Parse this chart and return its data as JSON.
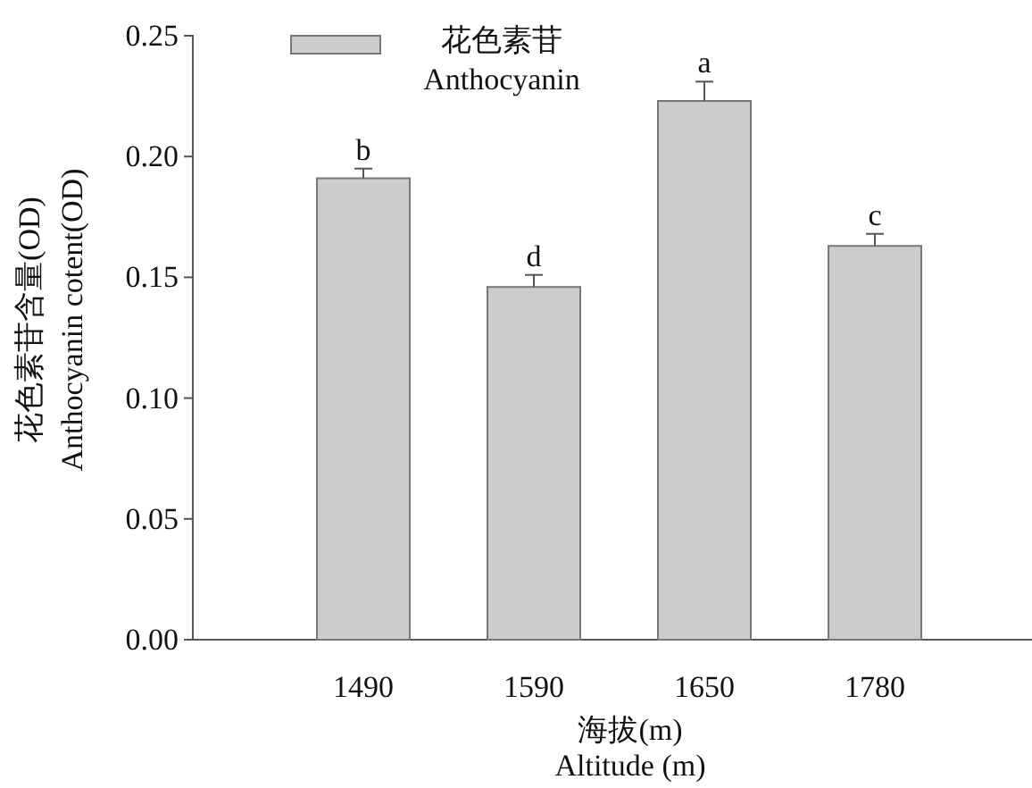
{
  "chart_data": {
    "type": "bar",
    "categories": [
      "1490",
      "1590",
      "1650",
      "1780"
    ],
    "series": [
      {
        "name": "花色素苷\nAnthocyanin",
        "color": "#cccccc",
        "values": [
          0.191,
          0.146,
          0.223,
          0.163
        ],
        "errors": [
          0.004,
          0.005,
          0.008,
          0.005
        ]
      }
    ],
    "ylim": [
      0,
      0.25
    ],
    "yticks": [
      {
        "value": 0,
        "label": "0.00"
      },
      {
        "value": 0.05,
        "label": "0.05"
      },
      {
        "value": 0.1,
        "label": "0.10"
      },
      {
        "value": 0.15,
        "label": "0.15"
      },
      {
        "value": 0.2,
        "label": "0.20"
      },
      {
        "value": 0.25,
        "label": "0.25"
      }
    ],
    "xlabel": "海拔(m)\nAltitude (m)",
    "ylabel": "花色素苷含量(OD)\nAnthocyanin cotent(OD)",
    "annotations": [
      {
        "text": "b",
        "x": "1490",
        "y": 0.195
      },
      {
        "text": "d",
        "x": "1590",
        "y": 0.151
      },
      {
        "text": "a",
        "x": "1650",
        "y": 0.231
      },
      {
        "text": "c",
        "x": "1780",
        "y": 0.168
      }
    ],
    "legend": "top left",
    "grid": false
  }
}
